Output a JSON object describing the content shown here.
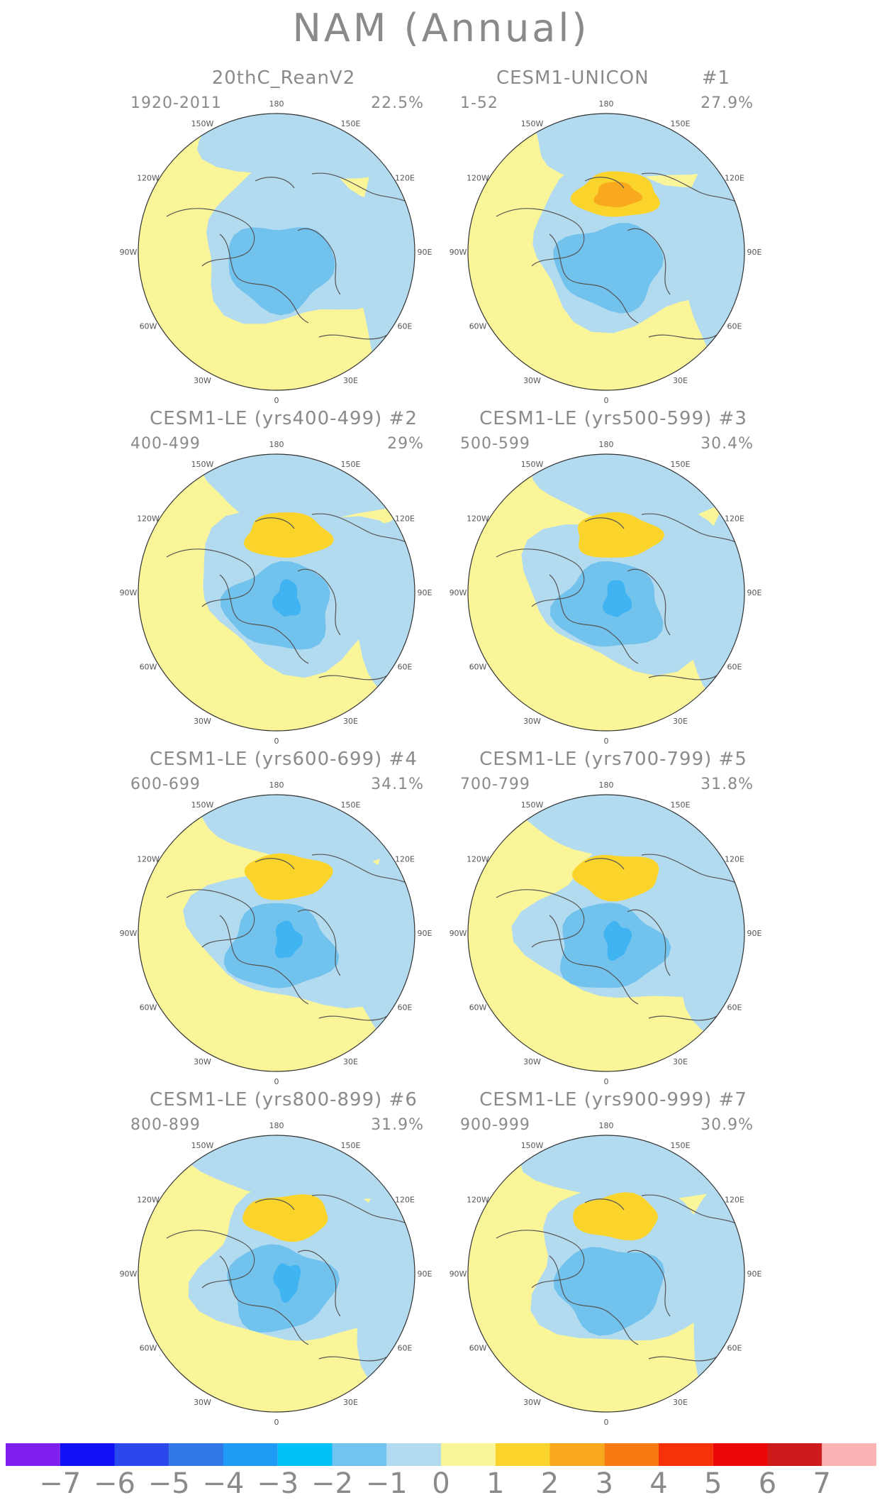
{
  "title": "NAM (Annual)",
  "colors": {
    "ocean_land_positive_small": "#fbf59a",
    "neg1": "#b3dbf0",
    "neg2": "#72c2ee",
    "neg3": "#3fb4f0",
    "pos1": "#fbd42b",
    "pos2": "#f8a91e",
    "coast": "#555555"
  },
  "lon_labels": [
    "180",
    "150E",
    "120E",
    "90E",
    "60E",
    "30E",
    "0",
    "30W",
    "60W",
    "90W",
    "120W",
    "150W"
  ],
  "chart_data": [
    {
      "type": "heatmap",
      "title": "20thC_ReanV2",
      "run": "",
      "period": "1920-2011",
      "variance_explained": "22.5%",
      "max_positive_level": 0,
      "min_negative_level": -2
    },
    {
      "type": "heatmap",
      "title": "CESM1-UNICON",
      "run": "#1",
      "period": "1-52",
      "variance_explained": "27.9%",
      "max_positive_level": 2,
      "min_negative_level": -2
    },
    {
      "type": "heatmap",
      "title": "CESM1-LE (yrs400-499)",
      "run": "#2",
      "period": "400-499",
      "variance_explained": "29%",
      "max_positive_level": 1,
      "min_negative_level": -3
    },
    {
      "type": "heatmap",
      "title": "CESM1-LE (yrs500-599)",
      "run": "#3",
      "period": "500-599",
      "variance_explained": "30.4%",
      "max_positive_level": 1,
      "min_negative_level": -3
    },
    {
      "type": "heatmap",
      "title": "CESM1-LE (yrs600-699)",
      "run": "#4",
      "period": "600-699",
      "variance_explained": "34.1%",
      "max_positive_level": 1,
      "min_negative_level": -3
    },
    {
      "type": "heatmap",
      "title": "CESM1-LE (yrs700-799)",
      "run": "#5",
      "period": "700-799",
      "variance_explained": "31.8%",
      "max_positive_level": 1,
      "min_negative_level": -3
    },
    {
      "type": "heatmap",
      "title": "CESM1-LE (yrs800-899)",
      "run": "#6",
      "period": "800-899",
      "variance_explained": "31.9%",
      "max_positive_level": 1,
      "min_negative_level": -3
    },
    {
      "type": "heatmap",
      "title": "CESM1-LE (yrs900-999)",
      "run": "#7",
      "period": "900-999",
      "variance_explained": "30.9%",
      "max_positive_level": 1,
      "min_negative_level": -2
    }
  ],
  "colorbar": {
    "labels": [
      "−7",
      "−6",
      "−5",
      "−4",
      "−3",
      "−2",
      "−1",
      "0",
      "1",
      "2",
      "3",
      "4",
      "5",
      "6",
      "7"
    ],
    "colors": [
      "#7f1ff0",
      "#1010f5",
      "#2a48ec",
      "#3077e8",
      "#1e9cf5",
      "#00c0f5",
      "#72c4ee",
      "#b3dbf0",
      "#fbf59a",
      "#fbd42b",
      "#f8a91e",
      "#f77b0e",
      "#f73208",
      "#ec0707",
      "#cd1a1a",
      "#fbb4b4"
    ]
  }
}
